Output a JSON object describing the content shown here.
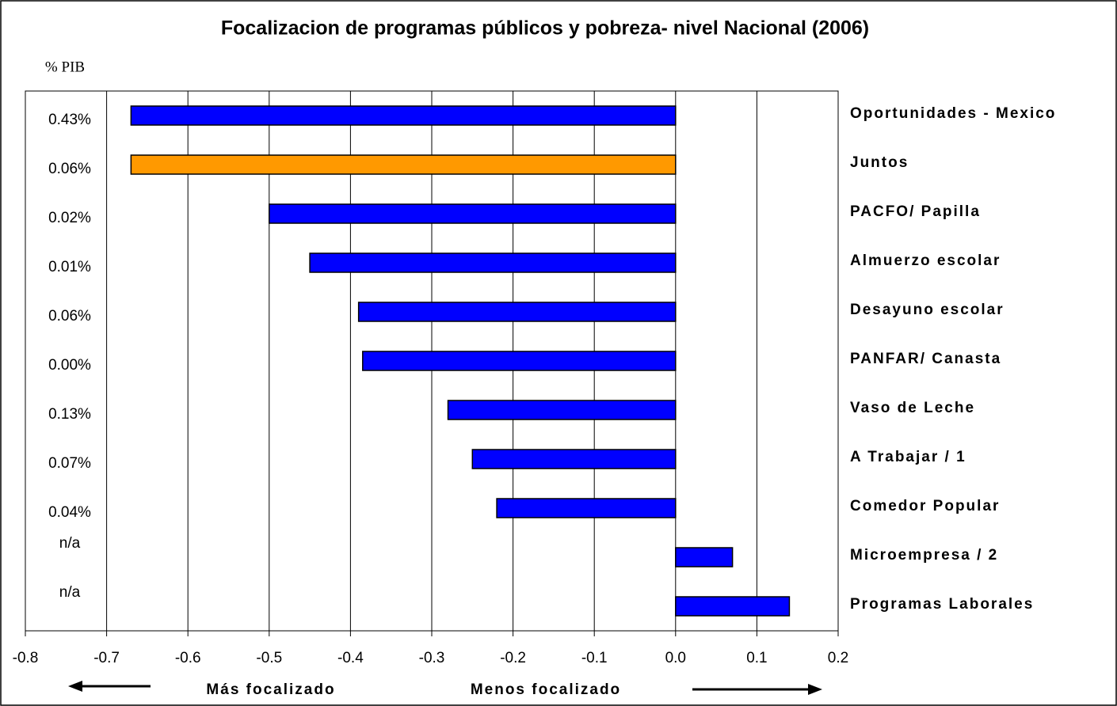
{
  "chart_data": {
    "type": "bar",
    "orientation": "horizontal",
    "title": "Focalizacion de programas públicos y pobreza- nivel Nacional (2006)",
    "y_label": "% PIB",
    "categories": [
      "Oportunidades - Mexico",
      "Juntos",
      "PACFO/ Papilla",
      "Almuerzo escolar",
      "Desayuno escolar",
      "PANFAR/ Canasta",
      "Vaso de Leche",
      "A Trabajar / 1",
      "Comedor Popular",
      "Microempresa / 2",
      "Programas Laborales"
    ],
    "values": [
      -0.67,
      -0.67,
      -0.5,
      -0.45,
      -0.39,
      -0.385,
      -0.28,
      -0.25,
      -0.22,
      0.07,
      0.14
    ],
    "colors": [
      "#0000ff",
      "#ff9900",
      "#0000ff",
      "#0000ff",
      "#0000ff",
      "#0000ff",
      "#0000ff",
      "#0000ff",
      "#0000ff",
      "#0000ff",
      "#0000ff"
    ],
    "pib": [
      "0.43%",
      "0.06%",
      "0.02%",
      "0.01%",
      "0.06%",
      "0.00%",
      "0.13%",
      "0.07%",
      "0.04%",
      "n/a",
      "n/a"
    ],
    "xlim": [
      -0.8,
      0.2
    ],
    "xticks": [
      -0.8,
      -0.7,
      -0.6,
      -0.5,
      -0.4,
      -0.3,
      -0.2,
      -0.1,
      {
        "value": 0,
        "label": "0.0"
      },
      0.1,
      0.2
    ],
    "grid": true,
    "annotations": [
      "Más focalizado",
      "Menos focalizado"
    ]
  }
}
